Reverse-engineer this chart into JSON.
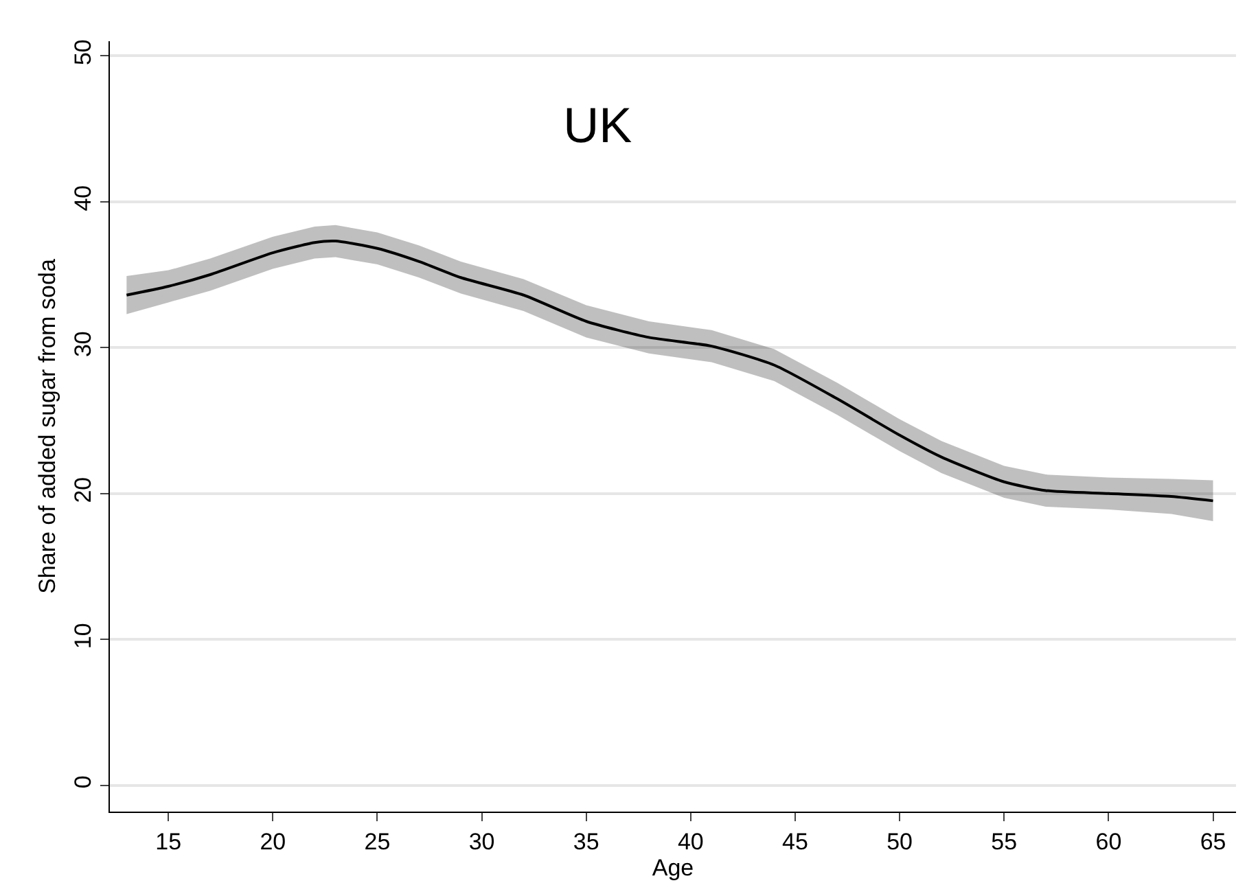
{
  "chart_data": {
    "type": "line",
    "title": "UK",
    "xlabel": "Age",
    "ylabel": "Share of added sugar from soda",
    "x": [
      13,
      15,
      17,
      20,
      22,
      23,
      25,
      27,
      29,
      32,
      35,
      38,
      41,
      44,
      47,
      50,
      52,
      55,
      57,
      60,
      63,
      65
    ],
    "series": [
      {
        "color": "#000000",
        "values": [
          33.6,
          34.2,
          35.0,
          36.5,
          37.2,
          37.3,
          36.8,
          35.9,
          34.8,
          33.6,
          31.8,
          30.7,
          30.1,
          28.8,
          26.5,
          24.0,
          22.5,
          20.8,
          20.2,
          20.0,
          19.8,
          19.5
        ],
        "lower": [
          32.3,
          33.1,
          33.9,
          35.4,
          36.1,
          36.2,
          35.7,
          34.8,
          33.7,
          32.5,
          30.7,
          29.6,
          29.0,
          27.7,
          25.4,
          22.9,
          21.4,
          19.7,
          19.1,
          18.9,
          18.6,
          18.1
        ],
        "upper": [
          34.9,
          35.3,
          36.1,
          37.6,
          38.3,
          38.4,
          37.9,
          37.0,
          35.9,
          34.7,
          32.9,
          31.8,
          31.2,
          29.9,
          27.6,
          25.1,
          23.6,
          21.9,
          21.3,
          21.1,
          21.0,
          20.9
        ]
      }
    ],
    "xlim": [
      12.2,
      66.1
    ],
    "ylim": [
      -1.8,
      51
    ],
    "xticks": [
      15,
      20,
      25,
      30,
      35,
      40,
      45,
      50,
      55,
      60,
      65
    ],
    "yticks": [
      0,
      10,
      20,
      30,
      40,
      50
    ],
    "grid": "y",
    "marker": "none",
    "line_style": "solid"
  }
}
